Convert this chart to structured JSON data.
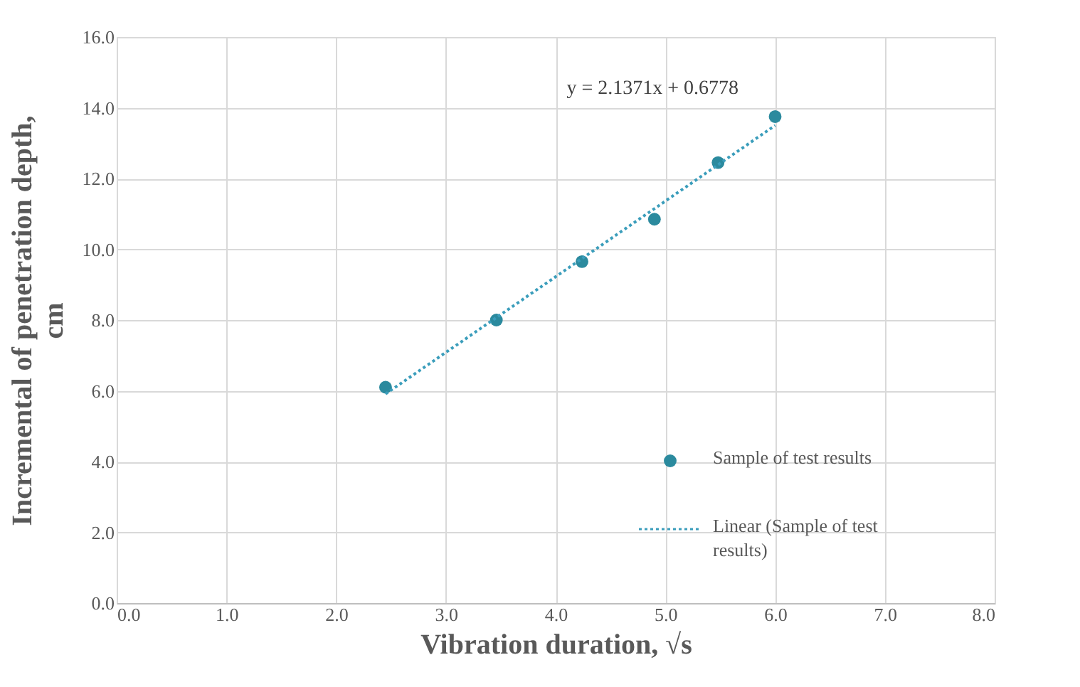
{
  "chart_data": {
    "type": "scatter",
    "xlabel": "Vibration duration, √s",
    "ylabel": "Incremental of penetration depth, cm",
    "series": [
      {
        "name": "Sample of test results",
        "marker": "circle",
        "color": "#2b8a9e",
        "x": [
          2.45,
          3.46,
          4.24,
          4.9,
          5.48,
          6.0
        ],
        "values": [
          6.1,
          8.0,
          9.65,
          10.85,
          12.45,
          13.75
        ]
      },
      {
        "name": "Linear (Sample of test results)",
        "type": "line",
        "color": "#3a9dbb",
        "marker": "none",
        "line_style": "dotted",
        "x": [
          2.45,
          6.0
        ],
        "values": [
          5.91,
          13.5
        ]
      }
    ],
    "annotations": [
      "y = 2.1371x + 0.6778"
    ],
    "xlim": [
      0,
      8
    ],
    "ylim": [
      0,
      16
    ],
    "xticks": [
      {
        "value": 0,
        "label": "0.0"
      },
      {
        "value": 1,
        "label": "1.0"
      },
      {
        "value": 2,
        "label": "2.0"
      },
      {
        "value": 3,
        "label": "3.0"
      },
      {
        "value": 4,
        "label": "4.0"
      },
      {
        "value": 5,
        "label": "5.0"
      },
      {
        "value": 6,
        "label": "6.0"
      },
      {
        "value": 7,
        "label": "7.0"
      },
      {
        "value": 8,
        "label": "8.0"
      }
    ],
    "yticks": [
      {
        "value": 0,
        "label": "0.0"
      },
      {
        "value": 2,
        "label": "2.0"
      },
      {
        "value": 4,
        "label": "4.0"
      },
      {
        "value": 6,
        "label": "6.0"
      },
      {
        "value": 8,
        "label": "8.0"
      },
      {
        "value": 10,
        "label": "10.0"
      },
      {
        "value": 12,
        "label": "12.0"
      },
      {
        "value": 14,
        "label": "14.0"
      },
      {
        "value": 16,
        "label": "16.0"
      }
    ],
    "grid": true,
    "legend": "bottom right"
  }
}
